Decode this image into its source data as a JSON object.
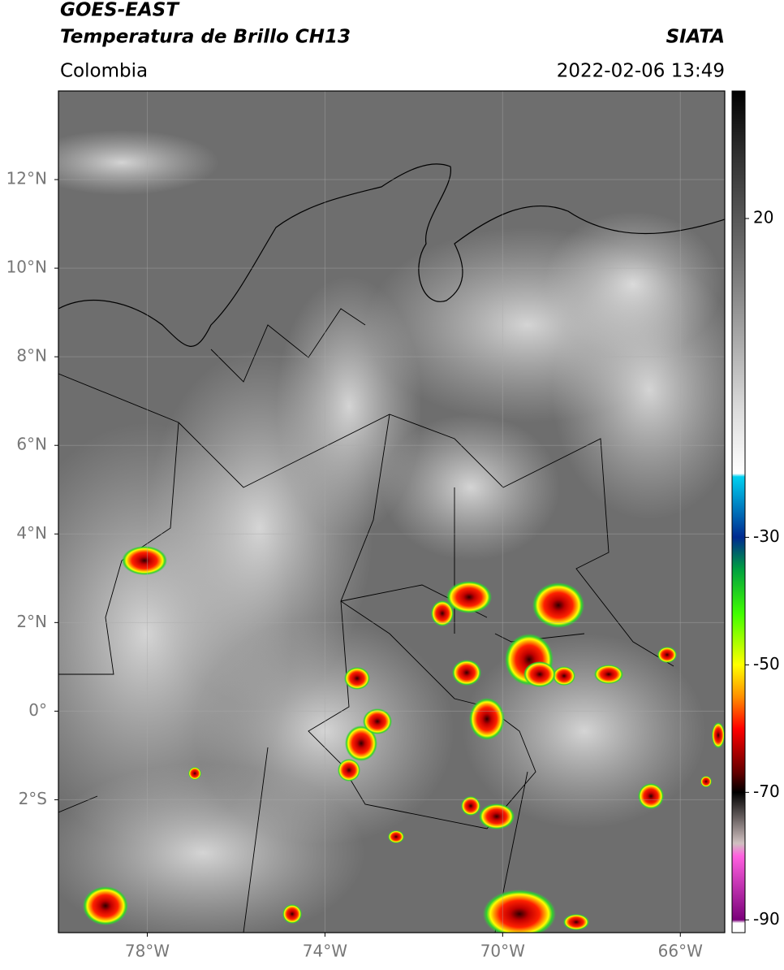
{
  "header": {
    "satellite": "GOES-EAST",
    "product": "Temperatura de Brillo CH13",
    "region": "Colombia",
    "source": "SIATA",
    "datetime": "2022-02-06 13:49"
  },
  "map": {
    "xlim": [
      -80,
      -65
    ],
    "ylim": [
      -5,
      14
    ],
    "xticks": [
      {
        "value": -78,
        "label": "78°W"
      },
      {
        "value": -74,
        "label": "74°W"
      },
      {
        "value": -70,
        "label": "70°W"
      },
      {
        "value": -66,
        "label": "66°W"
      }
    ],
    "yticks": [
      {
        "value": 12,
        "label": "12°N"
      },
      {
        "value": 10,
        "label": "10°N"
      },
      {
        "value": 8,
        "label": "8°N"
      },
      {
        "value": 6,
        "label": "6°N"
      },
      {
        "value": 4,
        "label": "4°N"
      },
      {
        "value": 2,
        "label": "2°N"
      },
      {
        "value": 0,
        "label": "0°"
      },
      {
        "value": -2,
        "label": "2°S"
      }
    ],
    "grid": true
  },
  "colorbar": {
    "lim": [
      -92,
      40
    ],
    "ticks": [
      20,
      -30,
      -50,
      -70,
      -90
    ],
    "stops": [
      {
        "value": 40,
        "color": "#000000"
      },
      {
        "value": 30,
        "color": "#303030"
      },
      {
        "value": 10,
        "color": "#808080"
      },
      {
        "value": -10,
        "color": "#dcdcdc"
      },
      {
        "value": -20,
        "color": "#ffffff"
      },
      {
        "value": -20.5,
        "color": "#00d0f0"
      },
      {
        "value": -30,
        "color": "#002a90"
      },
      {
        "value": -35,
        "color": "#00a040"
      },
      {
        "value": -42,
        "color": "#40ff00"
      },
      {
        "value": -50,
        "color": "#ffff00"
      },
      {
        "value": -55,
        "color": "#ff9000"
      },
      {
        "value": -60,
        "color": "#ff0000"
      },
      {
        "value": -67,
        "color": "#600000"
      },
      {
        "value": -70,
        "color": "#000000"
      },
      {
        "value": -78,
        "color": "#d0c0c0"
      },
      {
        "value": -80,
        "color": "#ff60e0"
      },
      {
        "value": -90,
        "color": "#7a007a"
      },
      {
        "value": -90.5,
        "color": "#ffffff"
      }
    ]
  }
}
